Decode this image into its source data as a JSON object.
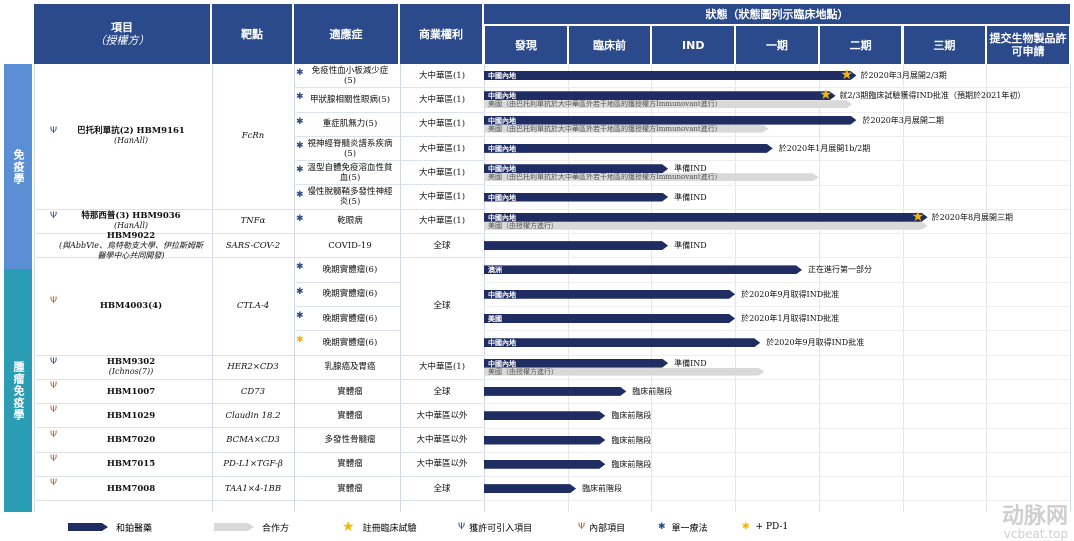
{
  "header": {
    "project": "項目",
    "project_sub": "（授權方）",
    "target": "靶點",
    "indication": "適應症",
    "rights": "商業權利",
    "status": "狀態（狀態圖列示臨床地點）",
    "stages": [
      "發現",
      "臨床前",
      "IND",
      "一期",
      "二期",
      "三期",
      "提交生物製品許可申請"
    ]
  },
  "sections": [
    {
      "label": "免疫學",
      "color": "#5a8fd6"
    },
    {
      "label": "腫瘤免疫學",
      "color": "#2a9db5"
    }
  ],
  "projects": [
    {
      "name": "巴托利單抗(2) HBM9161",
      "sub": "(HanAll)",
      "target": "FcRn",
      "icon": "licensed-icon"
    },
    {
      "name": "特那西普(3) HBM9036",
      "sub": "(HanAll)",
      "target": "TNFα",
      "icon": "licensed-icon"
    },
    {
      "name": "HBM9022",
      "sub": "(與AbbVie、烏特勒支大學、伊拉斯姆斯醫學中心共同開發)",
      "target": "SARS-COV-2",
      "icon": ""
    },
    {
      "name": "HBM4003(4)",
      "sub": "",
      "target": "CTLA-4",
      "icon": "inhouse-icon"
    },
    {
      "name": "HBM9302",
      "sub": "(Ichnos(7))",
      "target": "HER2×CD3",
      "icon": "licensed-icon"
    },
    {
      "name": "HBM1007",
      "sub": "",
      "target": "CD73",
      "icon": "inhouse-icon"
    },
    {
      "name": "HBM1029",
      "sub": "",
      "target": "Claudin 18.2",
      "icon": "inhouse-icon"
    },
    {
      "name": "HBM7020",
      "sub": "",
      "target": "BCMA×CD3",
      "icon": "inhouse-icon"
    },
    {
      "name": "HBM7015",
      "sub": "",
      "target": "PD-L1×TGF-β",
      "icon": "inhouse-icon"
    },
    {
      "name": "HBM7008",
      "sub": "",
      "target": "TAA1×4-1BB",
      "icon": "inhouse-icon"
    }
  ],
  "rights": {
    "gc": "大中華區(1)",
    "global": "全球",
    "ex_gc": "大中華區以外"
  },
  "chart_data": {
    "type": "table",
    "stages": [
      "發現",
      "臨床前",
      "IND",
      "一期",
      "二期",
      "三期",
      "提交生物製品許可申請"
    ],
    "rows": [
      {
        "indication": "免疫性血小板減少症(5)",
        "rights": "大中華區(1)",
        "marker": "*",
        "bars": [
          {
            "region": "中國內地",
            "stage_end": 4.45,
            "star": true,
            "note": "於2020年3月展開2/3期"
          }
        ]
      },
      {
        "indication": "甲狀腺相關性眼病(5)",
        "rights": "大中華區(1)",
        "marker": "*",
        "bars": [
          {
            "region": "中國內地",
            "stage_end": 4.2,
            "star": true,
            "note": "就2/3期臨床試驗獲得IND批准（預期於2021年初）"
          },
          {
            "region": "美國（由巴托利單抗於大中華區外若干地區的獲授權方Immunovant進行）",
            "stage_end": 4.4,
            "partner": true
          }
        ]
      },
      {
        "indication": "重症肌無力(5)",
        "rights": "大中華區(1)",
        "marker": "*",
        "bars": [
          {
            "region": "中國內地",
            "stage_end": 4.45,
            "note": "於2020年3月展開二期"
          },
          {
            "region": "美國（由巴托利單抗於大中華區外若干地區的獲授權方Immunovant進行）",
            "stage_end": 3.4,
            "partner": true
          }
        ]
      },
      {
        "indication": "視神經脊髓炎譜系疾病(5)",
        "rights": "大中華區(1)",
        "marker": "*",
        "bars": [
          {
            "region": "中國內地",
            "stage_end": 3.45,
            "note": "於2020年1月展開1b/2期"
          }
        ]
      },
      {
        "indication": "溫型自體免疫溶血性貧血(5)",
        "rights": "大中華區(1)",
        "marker": "*",
        "bars": [
          {
            "region": "中國內地",
            "stage_end": 2.2,
            "note": "準備IND"
          },
          {
            "region": "美國（由巴托利單抗於大中華區外若干地區的獲授權方Immunovant進行）",
            "stage_end": 4.0,
            "partner": true
          }
        ]
      },
      {
        "indication": "慢性脫髓鞘多發性神經炎(5)",
        "rights": "大中華區(1)",
        "marker": "*",
        "bars": [
          {
            "region": "中國內地",
            "stage_end": 2.2,
            "note": "準備IND"
          }
        ]
      },
      {
        "indication": "乾眼病",
        "rights": "大中華區(1)",
        "marker": "*",
        "bars": [
          {
            "region": "中國內地",
            "stage_end": 5.3,
            "star": true,
            "note": "於2020年8月展開三期"
          },
          {
            "region": "美國（由授權方進行）",
            "stage_end": 5.3,
            "partner": true
          }
        ]
      },
      {
        "indication": "COVID-19",
        "rights": "全球",
        "marker": "",
        "bars": [
          {
            "region": "",
            "stage_end": 2.2,
            "note": "準備IND"
          }
        ]
      },
      {
        "indication": "晚期實體瘤(6)",
        "rights": "全球",
        "marker": "*",
        "bars": [
          {
            "region": "澳洲",
            "stage_end": 3.8,
            "note": "正在進行第一部分"
          }
        ]
      },
      {
        "indication": "晚期實體瘤(6)",
        "rights": "全球",
        "marker": "*",
        "bars": [
          {
            "region": "中國內地",
            "stage_end": 3.0,
            "note": "於2020年9月取得IND批准"
          }
        ]
      },
      {
        "indication": "晚期實體瘤(6)",
        "rights": "全球",
        "marker": "*",
        "bars": [
          {
            "region": "美國",
            "stage_end": 3.0,
            "note": "於2020年1月取得IND批准"
          }
        ]
      },
      {
        "indication": "晚期實體瘤(6)",
        "rights": "全球",
        "marker": "+",
        "bars": [
          {
            "region": "中國內地",
            "stage_end": 3.3,
            "note": "於2020年9月取得IND批准"
          }
        ]
      },
      {
        "indication": "乳腺癌及胃癌",
        "rights": "大中華區(1)",
        "marker": "",
        "bars": [
          {
            "region": "中國內地",
            "stage_end": 2.2,
            "note": "準備IND"
          },
          {
            "region": "美國（由授權方進行）",
            "stage_end": 3.35,
            "partner": true
          }
        ]
      },
      {
        "indication": "實體瘤",
        "rights": "全球",
        "marker": "",
        "bars": [
          {
            "region": "",
            "stage_end": 1.7,
            "note": "臨床前階段"
          }
        ]
      },
      {
        "indication": "實體瘤",
        "rights": "大中華區以外",
        "marker": "",
        "bars": [
          {
            "region": "",
            "stage_end": 1.45,
            "note": "臨床前階段"
          }
        ]
      },
      {
        "indication": "多發性骨髓瘤",
        "rights": "大中華區以外",
        "marker": "",
        "bars": [
          {
            "region": "",
            "stage_end": 1.45,
            "note": "臨床前階段"
          }
        ]
      },
      {
        "indication": "實體瘤",
        "rights": "大中華區以外",
        "marker": "",
        "bars": [
          {
            "region": "",
            "stage_end": 1.45,
            "note": "臨床前階段"
          }
        ]
      },
      {
        "indication": "實體瘤",
        "rights": "全球",
        "marker": "",
        "bars": [
          {
            "region": "",
            "stage_end": 1.1,
            "note": "臨床前階段"
          }
        ]
      }
    ]
  },
  "legend": {
    "own": "和鉑醫藥",
    "partner": "合作方",
    "registered": "註冊臨床試驗",
    "licensed": "獲許可引入項目",
    "inhouse": "內部項目",
    "mono": "單一療法",
    "pd1": "+ PD-1"
  },
  "watermark": {
    "main": "动脉网",
    "url": "vcbeat.top"
  },
  "colors": {
    "header": "#2b4a8b",
    "own_bar": "#1f2d63",
    "partner_bar": "#d9d9d9",
    "star": "#f2b705"
  }
}
